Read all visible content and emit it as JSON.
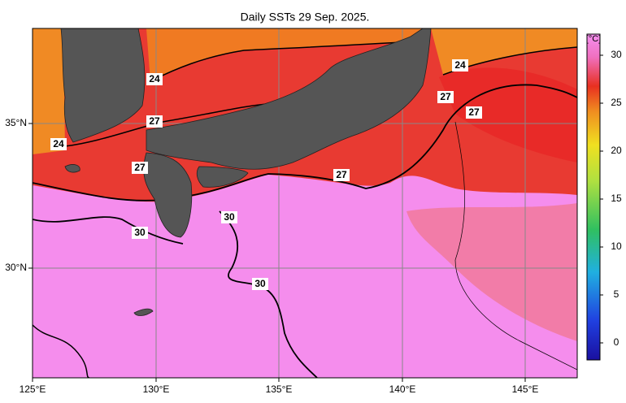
{
  "title": "Daily SSTs 29 Sep. 2025.",
  "map": {
    "lon_labels": [
      "125°E",
      "130°E",
      "135°E",
      "140°E",
      "145°E"
    ],
    "lat_labels": [
      "35°N",
      "30°N"
    ],
    "contour_labels": [
      "24",
      "24",
      "27",
      "24",
      "27",
      "27",
      "27",
      "27",
      "30",
      "30",
      "30"
    ]
  },
  "colorbar": {
    "unit": "[°C]",
    "ticks": [
      30,
      25,
      20,
      15,
      10,
      5,
      0
    ]
  }
}
